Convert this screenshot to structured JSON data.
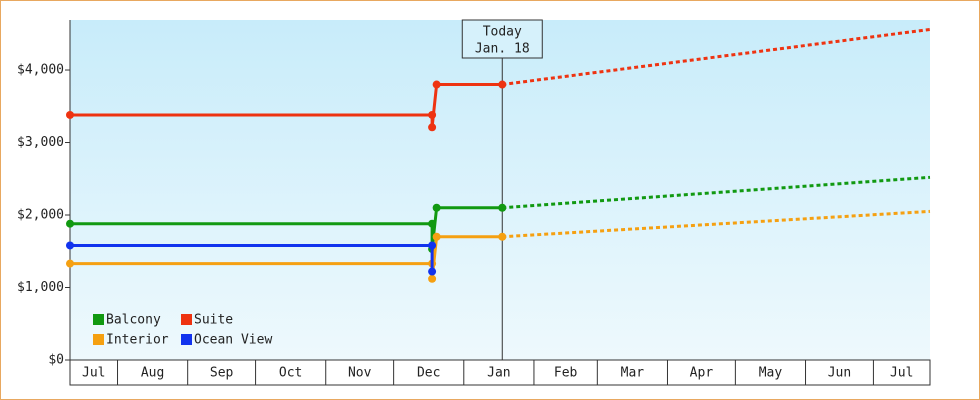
{
  "chart_data": {
    "type": "line",
    "ylim": [
      0,
      4690
    ],
    "yticks": [
      {
        "value": 0,
        "label": "$0"
      },
      {
        "value": 1000,
        "label": "$1,000"
      },
      {
        "value": 2000,
        "label": "$2,000"
      },
      {
        "value": 3000,
        "label": "$3,000"
      },
      {
        "value": 4000,
        "label": "$4,000"
      }
    ],
    "xlim": [
      0,
      380
    ],
    "categories": [
      "Jul",
      "Aug",
      "Sep",
      "Oct",
      "Nov",
      "Dec",
      "Jan",
      "Feb",
      "Mar",
      "Apr",
      "May",
      "Jun",
      "Jul"
    ],
    "xticks": [
      21,
      52,
      82,
      113,
      143,
      174,
      205,
      233,
      264,
      294,
      325,
      355
    ],
    "today": {
      "x": 191,
      "label": "Today",
      "date": "Jan. 18"
    },
    "forecast_x": [
      191,
      380
    ],
    "series": [
      {
        "name": "Balcony",
        "color": "#119911",
        "x": [
          0,
          160,
          160,
          162,
          191
        ],
        "values": [
          1880,
          1880,
          1530,
          2100,
          2100
        ],
        "forecast_values": [
          2100,
          2520
        ]
      },
      {
        "name": "Suite",
        "color": "#ee3311",
        "x": [
          0,
          160,
          160,
          162,
          191
        ],
        "values": [
          3380,
          3380,
          3210,
          3800,
          3800
        ],
        "forecast_values": [
          3800,
          4560
        ]
      },
      {
        "name": "Interior",
        "color": "#f5a011",
        "x": [
          0,
          160,
          160,
          162,
          191
        ],
        "values": [
          1330,
          1330,
          1120,
          1700,
          1700
        ],
        "forecast_values": [
          1700,
          2050
        ]
      },
      {
        "name": "Ocean View",
        "color": "#1133ee",
        "x": [
          0,
          160,
          160
        ],
        "values": [
          1580,
          1580,
          1220
        ]
      }
    ]
  }
}
